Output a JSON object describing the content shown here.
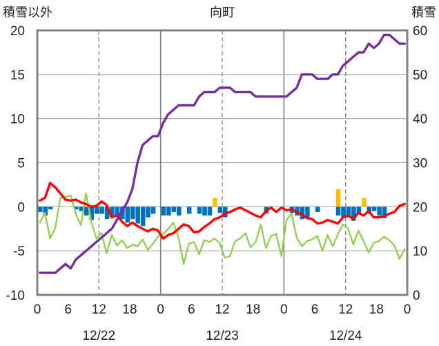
{
  "chart_data": {
    "type": "line",
    "title": "向町",
    "y_left_label": "積雪以外",
    "y_right_label": "積雪",
    "y_left_range": [
      -10,
      20
    ],
    "y_left_ticks": [
      "20",
      "15",
      "10",
      "5",
      "0",
      "-5",
      "-10"
    ],
    "y_right_range": [
      0,
      60
    ],
    "y_right_ticks": [
      "60",
      "50",
      "40",
      "30",
      "20",
      "10",
      "0"
    ],
    "x_range_hours": [
      0,
      72
    ],
    "x_tick_labels": [
      "0",
      "6",
      "12",
      "18",
      "0",
      "6",
      "12",
      "18",
      "0",
      "6",
      "12",
      "18",
      "0"
    ],
    "date_labels": [
      "12/22",
      "12/23",
      "12/24"
    ],
    "grid": "vertical dashed every 12h, solid at day boundaries",
    "series": [
      {
        "key": "snow_depth",
        "axis": "right",
        "color": "#7030a0",
        "points": [
          [
            0,
            5
          ],
          [
            1,
            5
          ],
          [
            2,
            5
          ],
          [
            3,
            5
          ],
          [
            4,
            6
          ],
          [
            5,
            7
          ],
          [
            6,
            6
          ],
          [
            7,
            8
          ],
          [
            8,
            9
          ],
          [
            9,
            10
          ],
          [
            10,
            11
          ],
          [
            11,
            12
          ],
          [
            12,
            13
          ],
          [
            13,
            14
          ],
          [
            14,
            15
          ],
          [
            15,
            17
          ],
          [
            16,
            19
          ],
          [
            17,
            21
          ],
          [
            18,
            24
          ],
          [
            19,
            30
          ],
          [
            20,
            34
          ],
          [
            21,
            35
          ],
          [
            22,
            36
          ],
          [
            23,
            36
          ],
          [
            24,
            39
          ],
          [
            25,
            41
          ],
          [
            26,
            42
          ],
          [
            27,
            43
          ],
          [
            28,
            43
          ],
          [
            29,
            43
          ],
          [
            30,
            43
          ],
          [
            31,
            45
          ],
          [
            32,
            46
          ],
          [
            33,
            46
          ],
          [
            34,
            46
          ],
          [
            35,
            47
          ],
          [
            36,
            47
          ],
          [
            37,
            47
          ],
          [
            38,
            46
          ],
          [
            39,
            46
          ],
          [
            40,
            46
          ],
          [
            41,
            46
          ],
          [
            42,
            45
          ],
          [
            43,
            45
          ],
          [
            44,
            45
          ],
          [
            45,
            45
          ],
          [
            46,
            45
          ],
          [
            47,
            45
          ],
          [
            48,
            45
          ],
          [
            49,
            46
          ],
          [
            50,
            47
          ],
          [
            51,
            50
          ],
          [
            52,
            50
          ],
          [
            53,
            50
          ],
          [
            54,
            49
          ],
          [
            55,
            49
          ],
          [
            56,
            49
          ],
          [
            57,
            50
          ],
          [
            58,
            50
          ],
          [
            59,
            52
          ],
          [
            60,
            53
          ],
          [
            61,
            54
          ],
          [
            62,
            55
          ],
          [
            63,
            55
          ],
          [
            64,
            57
          ],
          [
            65,
            56
          ],
          [
            66,
            57
          ],
          [
            67,
            59
          ],
          [
            68,
            59
          ],
          [
            69,
            58
          ],
          [
            70,
            57
          ],
          [
            71,
            57
          ]
        ]
      },
      {
        "key": "temperature",
        "axis": "left",
        "color": "#ff0000",
        "points": [
          [
            0,
            0.7
          ],
          [
            1,
            1.0
          ],
          [
            2,
            2.7
          ],
          [
            3,
            2.2
          ],
          [
            4,
            1.5
          ],
          [
            5,
            0.8
          ],
          [
            6,
            0.7
          ],
          [
            7,
            0.8
          ],
          [
            8,
            0.5
          ],
          [
            9,
            0.3
          ],
          [
            10,
            0.0
          ],
          [
            11,
            0.1
          ],
          [
            12,
            0.6
          ],
          [
            13,
            0.2
          ],
          [
            14,
            -1.2
          ],
          [
            15,
            -1.0
          ],
          [
            16,
            -1.7
          ],
          [
            17,
            -2.2
          ],
          [
            18,
            -1.8
          ],
          [
            19,
            -2.2
          ],
          [
            20,
            -2.5
          ],
          [
            21,
            -2.8
          ],
          [
            22,
            -2.5
          ],
          [
            23,
            -2.7
          ],
          [
            24,
            -3.6
          ],
          [
            25,
            -3.2
          ],
          [
            26,
            -3.0
          ],
          [
            27,
            -2.5
          ],
          [
            28,
            -2.0
          ],
          [
            29,
            -2.2
          ],
          [
            30,
            -2.9
          ],
          [
            31,
            -2.8
          ],
          [
            32,
            -2.3
          ],
          [
            33,
            -1.9
          ],
          [
            34,
            -1.4
          ],
          [
            35,
            -1.2
          ],
          [
            36,
            -0.8
          ],
          [
            37,
            -0.6
          ],
          [
            38,
            -0.3
          ],
          [
            39,
            -0.1
          ],
          [
            40,
            -0.4
          ],
          [
            41,
            -0.7
          ],
          [
            42,
            -1.0
          ],
          [
            43,
            -1.2
          ],
          [
            44,
            -0.5
          ],
          [
            45,
            -0.1
          ],
          [
            46,
            -0.6
          ],
          [
            47,
            -0.1
          ],
          [
            48,
            -0.4
          ],
          [
            49,
            -0.3
          ],
          [
            50,
            -0.6
          ],
          [
            51,
            -0.9
          ],
          [
            52,
            -1.3
          ],
          [
            53,
            -1.4
          ],
          [
            54,
            -1.9
          ],
          [
            55,
            -1.8
          ],
          [
            56,
            -1.5
          ],
          [
            57,
            -1.7
          ],
          [
            58,
            -1.9
          ],
          [
            59,
            -1.2
          ],
          [
            60,
            -1.0
          ],
          [
            61,
            -1.4
          ],
          [
            62,
            -0.7
          ],
          [
            63,
            -1.0
          ],
          [
            64,
            -0.5
          ],
          [
            65,
            -1.2
          ],
          [
            66,
            -1.2
          ],
          [
            67,
            -1.1
          ],
          [
            68,
            -0.8
          ],
          [
            69,
            -0.6
          ],
          [
            70,
            0.1
          ],
          [
            71,
            0.3
          ]
        ]
      },
      {
        "key": "wind",
        "axis": "left",
        "color": "#92d050",
        "points": [
          [
            0,
            -1.8
          ],
          [
            1,
            -0.7
          ],
          [
            2,
            -3.6
          ],
          [
            3,
            -2.4
          ],
          [
            4,
            1.0
          ],
          [
            5,
            1.1
          ],
          [
            6,
            1.3
          ],
          [
            7,
            -0.8
          ],
          [
            8,
            -2.1
          ],
          [
            9,
            1.5
          ],
          [
            10,
            -1.7
          ],
          [
            11,
            -3.6
          ],
          [
            12,
            -3.0
          ],
          [
            13,
            -5.3
          ],
          [
            14,
            -3.2
          ],
          [
            15,
            -4.4
          ],
          [
            16,
            -3.8
          ],
          [
            17,
            -4.7
          ],
          [
            18,
            -4.3
          ],
          [
            19,
            -4.5
          ],
          [
            20,
            -3.7
          ],
          [
            21,
            -4.9
          ],
          [
            22,
            -4.2
          ],
          [
            23,
            -3.4
          ],
          [
            24,
            -3.1
          ],
          [
            25,
            -2.5
          ],
          [
            26,
            -1.8
          ],
          [
            27,
            -3.5
          ],
          [
            28,
            -6.5
          ],
          [
            29,
            -4.2
          ],
          [
            30,
            -4.0
          ],
          [
            31,
            -5.4
          ],
          [
            32,
            -3.8
          ],
          [
            33,
            -4.0
          ],
          [
            34,
            -3.6
          ],
          [
            35,
            -4.1
          ],
          [
            36,
            -5.8
          ],
          [
            37,
            -5.6
          ],
          [
            38,
            -3.9
          ],
          [
            39,
            -3.6
          ],
          [
            40,
            -3.0
          ],
          [
            41,
            -4.6
          ],
          [
            42,
            -4.0
          ],
          [
            43,
            -2.0
          ],
          [
            44,
            -4.7
          ],
          [
            45,
            -3.3
          ],
          [
            46,
            -3.1
          ],
          [
            47,
            -5.6
          ],
          [
            48,
            -1.5
          ],
          [
            49,
            -0.8
          ],
          [
            50,
            -3.5
          ],
          [
            51,
            -4.5
          ],
          [
            52,
            -3.9
          ],
          [
            53,
            -3.7
          ],
          [
            54,
            -3.3
          ],
          [
            55,
            -5.0
          ],
          [
            56,
            -3.2
          ],
          [
            57,
            -4.5
          ],
          [
            58,
            -3.1
          ],
          [
            59,
            -2.0
          ],
          [
            60,
            -2.5
          ],
          [
            61,
            -4.3
          ],
          [
            62,
            -2.7
          ],
          [
            63,
            -3.9
          ],
          [
            64,
            -5.2
          ],
          [
            65,
            -4.1
          ],
          [
            66,
            -3.9
          ],
          [
            67,
            -3.4
          ],
          [
            68,
            -3.8
          ],
          [
            69,
            -4.4
          ],
          [
            70,
            -5.9
          ],
          [
            71,
            -4.8
          ]
        ]
      },
      {
        "key": "temp_change_down",
        "type": "bar",
        "axis": "left",
        "color": "#0070c0",
        "points": [
          [
            0,
            -0.6
          ],
          [
            1,
            -1.0
          ],
          [
            2,
            -0.3
          ],
          [
            7,
            -0.3
          ],
          [
            8,
            -0.5
          ],
          [
            9,
            -1.0
          ],
          [
            10,
            -1.5
          ],
          [
            11,
            -0.8
          ],
          [
            12,
            -0.8
          ],
          [
            13,
            -1.4
          ],
          [
            14,
            -1.2
          ],
          [
            15,
            -1.0
          ],
          [
            16,
            -1.4
          ],
          [
            17,
            -1.8
          ],
          [
            18,
            -1.4
          ],
          [
            19,
            -1.9
          ],
          [
            20,
            -2.2
          ],
          [
            21,
            -1.2
          ],
          [
            22,
            -0.8
          ],
          [
            24,
            -1.0
          ],
          [
            25,
            -1.0
          ],
          [
            26,
            -0.6
          ],
          [
            27,
            -1.0
          ],
          [
            29,
            -0.8
          ],
          [
            31,
            -0.8
          ],
          [
            32,
            -1.0
          ],
          [
            33,
            -1.0
          ],
          [
            35,
            -0.7
          ],
          [
            36,
            -1.2
          ],
          [
            44,
            -0.8
          ],
          [
            49,
            -0.7
          ],
          [
            50,
            -1.0
          ],
          [
            51,
            -1.4
          ],
          [
            52,
            -1.2
          ],
          [
            54,
            -0.6
          ],
          [
            58,
            -1.0
          ],
          [
            59,
            -1.2
          ],
          [
            60,
            -1.2
          ],
          [
            61,
            -1.6
          ],
          [
            62,
            -0.9
          ],
          [
            64,
            -0.8
          ],
          [
            65,
            -0.5
          ],
          [
            66,
            -1.0
          ],
          [
            67,
            -1.3
          ]
        ]
      },
      {
        "key": "temp_change_up",
        "type": "bar",
        "axis": "left",
        "color": "#ffc000",
        "points": [
          [
            34,
            1.0
          ],
          [
            58,
            2.0
          ],
          [
            63,
            1.0
          ]
        ]
      }
    ]
  }
}
